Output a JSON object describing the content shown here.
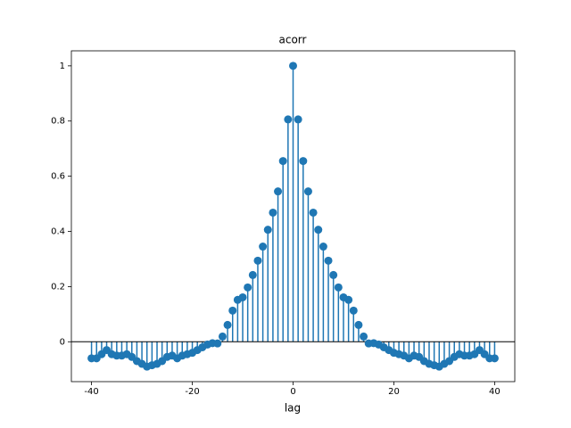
{
  "chart_data": {
    "type": "stem",
    "title": "acorr",
    "xlabel": "lag",
    "color": "#1f77b4",
    "x": [
      -40,
      -39,
      -38,
      -37,
      -36,
      -35,
      -34,
      -33,
      -32,
      -31,
      -30,
      -29,
      -28,
      -27,
      -26,
      -25,
      -24,
      -23,
      -22,
      -21,
      -20,
      -19,
      -18,
      -17,
      -16,
      -15,
      -14,
      -13,
      -12,
      -11,
      -10,
      -9,
      -8,
      -7,
      -6,
      -5,
      -4,
      -3,
      -2,
      -1,
      0,
      1,
      2,
      3,
      4,
      5,
      6,
      7,
      8,
      9,
      10,
      11,
      12,
      13,
      14,
      15,
      16,
      17,
      18,
      19,
      20,
      21,
      22,
      23,
      24,
      25,
      26,
      27,
      28,
      29,
      30,
      31,
      32,
      33,
      34,
      35,
      36,
      37,
      38,
      39,
      40
    ],
    "values": [
      -0.06,
      -0.06,
      -0.045,
      -0.03,
      -0.045,
      -0.05,
      -0.05,
      -0.045,
      -0.055,
      -0.07,
      -0.08,
      -0.09,
      -0.085,
      -0.08,
      -0.07,
      -0.055,
      -0.05,
      -0.06,
      -0.05,
      -0.045,
      -0.04,
      -0.03,
      -0.02,
      -0.01,
      -0.005,
      -0.006,
      0.019,
      0.061,
      0.113,
      0.152,
      0.161,
      0.197,
      0.242,
      0.294,
      0.345,
      0.406,
      0.468,
      0.545,
      0.655,
      0.806,
      1.0,
      0.806,
      0.655,
      0.545,
      0.468,
      0.406,
      0.345,
      0.294,
      0.242,
      0.197,
      0.161,
      0.152,
      0.113,
      0.061,
      0.019,
      -0.006,
      -0.005,
      -0.01,
      -0.02,
      -0.03,
      -0.04,
      -0.045,
      -0.05,
      -0.06,
      -0.05,
      -0.055,
      -0.07,
      -0.08,
      -0.085,
      -0.09,
      -0.08,
      -0.07,
      -0.055,
      -0.045,
      -0.05,
      -0.05,
      -0.045,
      -0.03,
      -0.045,
      -0.06,
      -0.06
    ],
    "xlim": [
      -44,
      44
    ],
    "ylim": [
      -0.1445,
      1.0545
    ],
    "xticks": [
      -40,
      -20,
      0,
      20,
      40
    ],
    "yticks": [
      0,
      0.2,
      0.4,
      0.6,
      0.8,
      1
    ]
  }
}
